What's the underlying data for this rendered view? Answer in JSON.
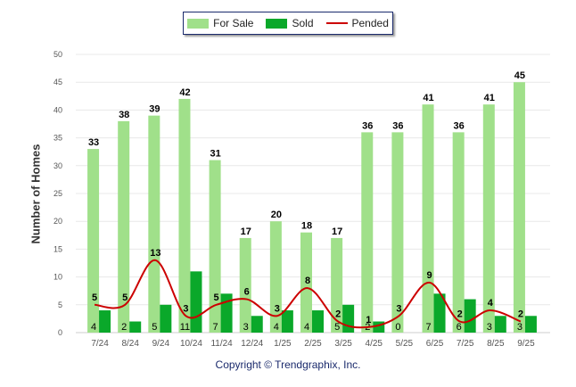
{
  "chart_data": {
    "type": "bar",
    "categories": [
      "7/24",
      "8/24",
      "9/24",
      "10/24",
      "11/24",
      "12/24",
      "1/25",
      "2/25",
      "3/25",
      "4/25",
      "5/25",
      "6/25",
      "7/25",
      "8/25",
      "9/25"
    ],
    "series": [
      {
        "name": "For Sale",
        "type": "bar",
        "color": "#a0e08a",
        "values": [
          33,
          38,
          39,
          42,
          31,
          17,
          20,
          18,
          17,
          36,
          36,
          41,
          36,
          41,
          45
        ]
      },
      {
        "name": "Sold",
        "type": "bar",
        "color": "#0aa82a",
        "values": [
          4,
          2,
          5,
          11,
          7,
          3,
          4,
          4,
          5,
          2,
          0,
          7,
          6,
          3,
          3
        ]
      },
      {
        "name": "Pended",
        "type": "line",
        "color": "#cc0000",
        "values": [
          5,
          5,
          13,
          3,
          5,
          6,
          3,
          8,
          2,
          1,
          3,
          9,
          2,
          4,
          2
        ]
      }
    ],
    "ylabel": "Number of Homes",
    "xlabel": "",
    "ylim": [
      0,
      50
    ],
    "yticks": [
      0,
      5,
      10,
      15,
      20,
      25,
      30,
      35,
      40,
      45,
      50
    ],
    "grid": true,
    "legend": "top"
  },
  "copyright": "Copyright © Trendgraphix, Inc."
}
